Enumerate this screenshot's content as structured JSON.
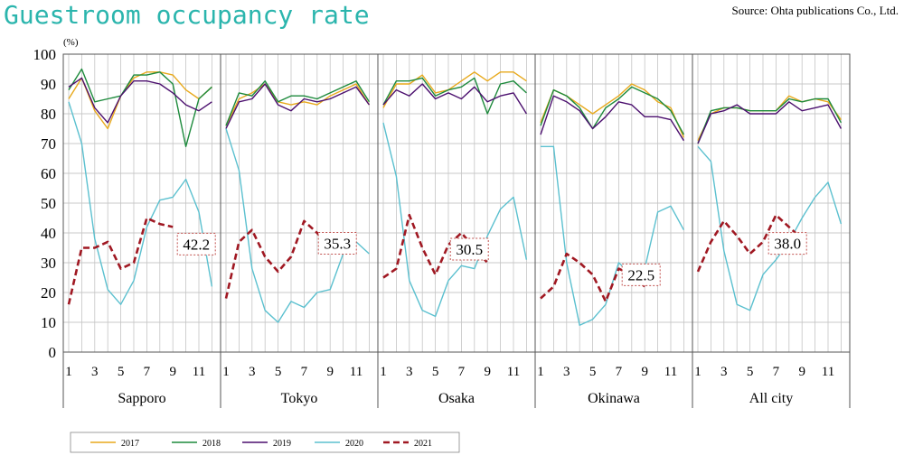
{
  "title": "Guestroom occupancy rate",
  "source": "Source: Ohta publications Co., Ltd.",
  "chart_data": {
    "type": "line",
    "ylabel": "(%)",
    "ylim": [
      0,
      100
    ],
    "yticks": [
      0,
      10,
      20,
      30,
      40,
      50,
      60,
      70,
      80,
      90,
      100
    ],
    "month_ticks": [
      "1",
      "3",
      "5",
      "7",
      "9",
      "11"
    ],
    "grid": true,
    "legend_position": "bottom",
    "colors": {
      "2017": "#e8a91c",
      "2018": "#1d8a3c",
      "2019": "#4b0f6e",
      "2020": "#5bc0cf",
      "2021": "#a01822"
    },
    "panels": [
      {
        "name": "Sapporo",
        "series": [
          {
            "name": "2017",
            "values": [
              85,
              92,
              81,
              75,
              86,
              92,
              94,
              94,
              93,
              88,
              85,
              89
            ]
          },
          {
            "name": "2018",
            "values": [
              88,
              95,
              84,
              85,
              86,
              93,
              93,
              94,
              90,
              69,
              85,
              89
            ]
          },
          {
            "name": "2019",
            "values": [
              89,
              92,
              82,
              77,
              86,
              91,
              91,
              90,
              87,
              83,
              81,
              84
            ]
          },
          {
            "name": "2020",
            "values": [
              84,
              70,
              38,
              21,
              16,
              24,
              42,
              51,
              52,
              58,
              47,
              22
            ]
          },
          {
            "name": "2021",
            "values": [
              16,
              35,
              35,
              37,
              28,
              30,
              45,
              43,
              42
            ]
          }
        ],
        "label": "42.2"
      },
      {
        "name": "Tokyo",
        "series": [
          {
            "name": "2017",
            "values": [
              76,
              85,
              87,
              90,
              84,
              83,
              84,
              83,
              86,
              88,
              90,
              83
            ]
          },
          {
            "name": "2018",
            "values": [
              76,
              87,
              86,
              91,
              84,
              86,
              86,
              85,
              87,
              89,
              91,
              84
            ]
          },
          {
            "name": "2019",
            "values": [
              75,
              84,
              85,
              90,
              83,
              81,
              85,
              84,
              85,
              87,
              89,
              83
            ]
          },
          {
            "name": "2020",
            "values": [
              75,
              61,
              28,
              14,
              10,
              17,
              15,
              20,
              21,
              33,
              37,
              33
            ]
          },
          {
            "name": "2021",
            "values": [
              18,
              37,
              41,
              32,
              27,
              32,
              44,
              40,
              35
            ]
          }
        ],
        "label": "35.3"
      },
      {
        "name": "Osaka",
        "series": [
          {
            "name": "2017",
            "values": [
              82,
              90,
              90,
              93,
              87,
              88,
              91,
              94,
              91,
              94,
              94,
              91
            ]
          },
          {
            "name": "2018",
            "values": [
              83,
              91,
              91,
              92,
              86,
              88,
              89,
              92,
              80,
              90,
              91,
              87
            ]
          },
          {
            "name": "2019",
            "values": [
              83,
              88,
              86,
              90,
              85,
              87,
              85,
              89,
              84,
              86,
              87,
              80
            ]
          },
          {
            "name": "2020",
            "values": [
              77,
              59,
              24,
              14,
              12,
              24,
              29,
              28,
              39,
              48,
              52,
              31
            ]
          },
          {
            "name": "2021",
            "values": [
              25,
              28,
              46,
              35,
              26,
              36,
              40,
              35,
              30
            ]
          }
        ],
        "label": "30.5"
      },
      {
        "name": "Okinawa",
        "series": [
          {
            "name": "2017",
            "values": [
              77,
              88,
              86,
              83,
              80,
              83,
              86,
              90,
              88,
              84,
              82,
              72
            ]
          },
          {
            "name": "2018",
            "values": [
              76,
              88,
              86,
              82,
              75,
              82,
              85,
              89,
              87,
              85,
              81,
              73
            ]
          },
          {
            "name": "2019",
            "values": [
              73,
              86,
              84,
              81,
              75,
              79,
              84,
              83,
              79,
              79,
              78,
              71
            ]
          },
          {
            "name": "2020",
            "values": [
              69,
              69,
              30,
              9,
              11,
              16,
              30,
              26,
              28,
              47,
              49,
              41
            ]
          },
          {
            "name": "2021",
            "values": [
              18,
              22,
              33,
              30,
              26,
              17,
              28,
              26,
              22
            ]
          }
        ],
        "label": "22.5"
      },
      {
        "name": "All city",
        "series": [
          {
            "name": "2017",
            "values": [
              71,
              80,
              82,
              82,
              81,
              81,
              81,
              86,
              84,
              85,
              84,
              78
            ]
          },
          {
            "name": "2018",
            "values": [
              70,
              81,
              82,
              82,
              81,
              81,
              81,
              85,
              84,
              85,
              85,
              77
            ]
          },
          {
            "name": "2019",
            "values": [
              70,
              80,
              81,
              83,
              80,
              80,
              80,
              84,
              81,
              82,
              83,
              75
            ]
          },
          {
            "name": "2020",
            "values": [
              69,
              64,
              34,
              16,
              14,
              26,
              31,
              37,
              45,
              52,
              57,
              43
            ]
          },
          {
            "name": "2021",
            "values": [
              27,
              37,
              44,
              39,
              33,
              37,
              46,
              42,
              38
            ]
          }
        ],
        "label": "38.0"
      }
    ]
  }
}
